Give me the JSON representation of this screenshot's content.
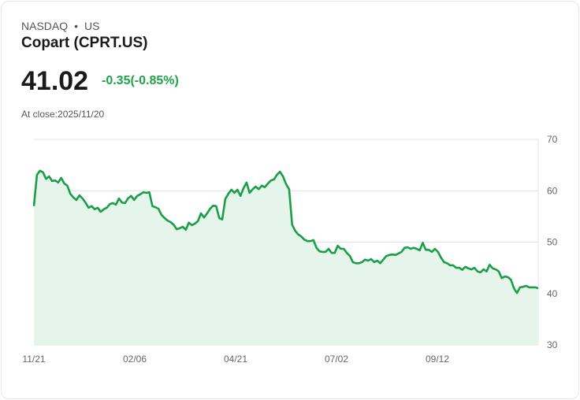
{
  "header": {
    "exchange": "NASDAQ",
    "separator": "•",
    "region": "US",
    "title": "Copart (CPRT.US)",
    "price": "41.02",
    "change": "-0.35(-0.85%)",
    "close_label": "At close:2025/11/20"
  },
  "colors": {
    "line": "#1a9e48",
    "fill": "#e6f5eb",
    "grid": "#e2e2e2",
    "change": "#1fa34a"
  },
  "chart_data": {
    "type": "area",
    "title": "Copart (CPRT.US)",
    "ylim": [
      30,
      70
    ],
    "yticks": [
      "70",
      "60",
      "50",
      "40",
      "30"
    ],
    "ytick_values": [
      70,
      60,
      50,
      40,
      30
    ],
    "xticks": [
      "11/21",
      "02/06",
      "04/21",
      "07/02",
      "09/12"
    ],
    "xtick_positions": [
      0,
      0.2,
      0.4,
      0.6,
      0.8
    ],
    "grid": true,
    "values": [
      57.0,
      63.1,
      63.9,
      63.6,
      62.3,
      62.8,
      61.9,
      62.0,
      61.6,
      62.5,
      61.4,
      61.0,
      59.4,
      58.7,
      58.2,
      59.1,
      58.5,
      57.7,
      56.7,
      57.0,
      56.4,
      56.7,
      55.9,
      56.4,
      56.7,
      57.4,
      57.6,
      57.3,
      58.5,
      57.7,
      57.6,
      58.5,
      59.0,
      58.2,
      59.0,
      59.3,
      59.7,
      59.6,
      59.7,
      57.0,
      56.8,
      56.5,
      55.3,
      54.7,
      54.2,
      53.9,
      53.4,
      52.5,
      52.7,
      53.0,
      52.4,
      53.8,
      53.3,
      53.6,
      54.1,
      55.6,
      54.8,
      55.6,
      56.5,
      57.1,
      57.0,
      54.7,
      54.4,
      58.4,
      59.4,
      60.2,
      59.6,
      60.2,
      59.0,
      60.5,
      61.6,
      59.6,
      60.3,
      60.8,
      60.3,
      61.0,
      60.7,
      61.4,
      62.0,
      62.2,
      63.1,
      63.7,
      62.8,
      61.3,
      60.3,
      53.4,
      52.2,
      51.5,
      51.1,
      50.5,
      50.2,
      50.2,
      50.4,
      48.9,
      48.2,
      48.1,
      48.1,
      48.7,
      47.9,
      47.9,
      49.3,
      48.7,
      48.7,
      47.9,
      47.3,
      46.1,
      45.9,
      45.9,
      46.1,
      46.6,
      46.4,
      46.7,
      46.1,
      46.4,
      45.9,
      46.6,
      47.3,
      47.5,
      47.6,
      47.5,
      47.8,
      48.1,
      48.9,
      49.0,
      48.7,
      48.9,
      48.7,
      48.4,
      49.9,
      48.5,
      48.5,
      48.1,
      48.7,
      48.1,
      47.0,
      46.1,
      45.9,
      45.5,
      45.5,
      45.0,
      45.0,
      44.6,
      45.2,
      44.9,
      44.7,
      45.0,
      44.3,
      44.1,
      44.7,
      44.3,
      45.6,
      44.9,
      44.7,
      44.3,
      43.0,
      43.3,
      43.2,
      42.7,
      41.0,
      40.1,
      41.2,
      41.3,
      41.5,
      41.2,
      41.2,
      41.2,
      41.02
    ]
  }
}
